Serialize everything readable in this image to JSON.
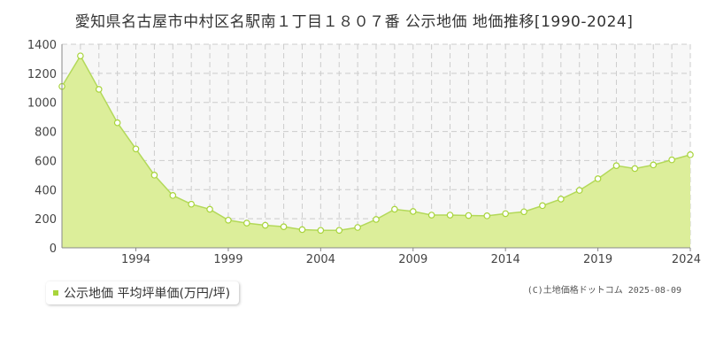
{
  "title": "愛知県名古屋市中村区名駅南１丁目１８０７番 公示地価 地価推移[1990-2024]",
  "legend": {
    "label": "公示地価 平均坪単価(万円/坪)"
  },
  "copyright": "(C)土地価格ドットコム 2025-08-09",
  "colors": {
    "fill": "#dcee9a",
    "line": "#b3d95a",
    "marker_fill": "#ffffff",
    "marker_stroke": "#a8d43b",
    "grid": "#cccccc",
    "axis": "#888888",
    "plot_bg": "#f7f7f7"
  },
  "chart_data": {
    "type": "area",
    "title": "愛知県名古屋市中村区名駅南１丁目１８０７番 公示地価 地価推移[1990-2024]",
    "x": [
      1990,
      1991,
      1992,
      1993,
      1994,
      1995,
      1996,
      1997,
      1998,
      1999,
      2000,
      2001,
      2002,
      2003,
      2004,
      2005,
      2006,
      2007,
      2008,
      2009,
      2010,
      2011,
      2012,
      2013,
      2014,
      2015,
      2016,
      2017,
      2018,
      2019,
      2020,
      2021,
      2022,
      2023,
      2024
    ],
    "series": [
      {
        "name": "公示地価 平均坪単価(万円/坪)",
        "values": [
          1110,
          1320,
          1090,
          860,
          680,
          500,
          360,
          300,
          265,
          190,
          170,
          155,
          145,
          125,
          120,
          120,
          140,
          195,
          265,
          250,
          225,
          225,
          222,
          220,
          235,
          248,
          290,
          335,
          395,
          475,
          565,
          545,
          570,
          605,
          640
        ]
      }
    ],
    "xticks": [
      "1994",
      "1999",
      "2004",
      "2009",
      "2014",
      "2019",
      "2024"
    ],
    "yticks": [
      "0",
      "200",
      "400",
      "600",
      "800",
      "1000",
      "1200",
      "1400"
    ],
    "xlim": [
      1990,
      2024
    ],
    "ylim": [
      0,
      1400
    ],
    "xlabel": "",
    "ylabel": "",
    "grid": true,
    "legend_position": "bottom-left"
  }
}
